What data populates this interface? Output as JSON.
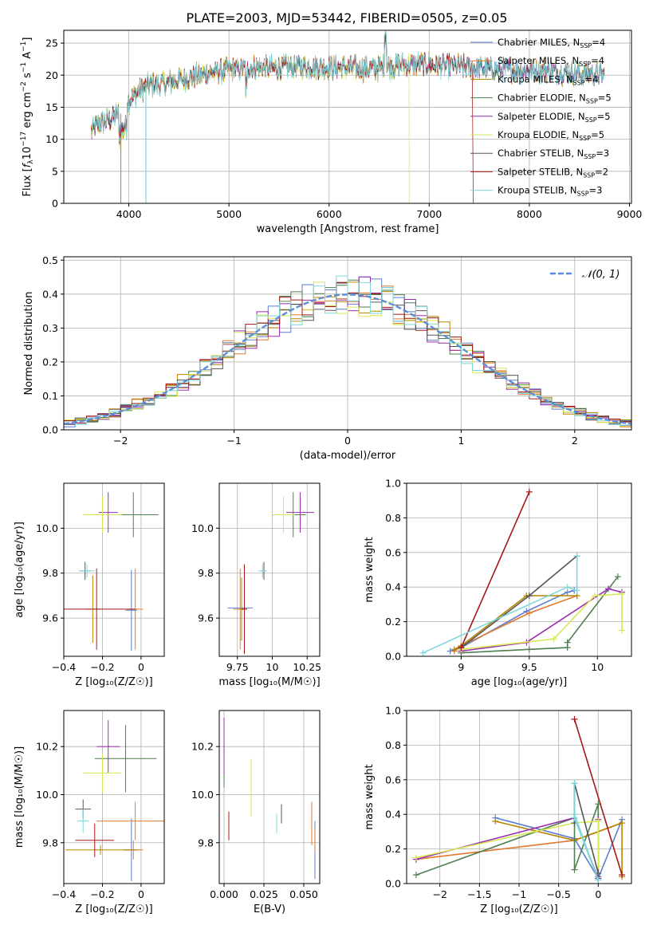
{
  "figure_title": "PLATE=2003, MJD=53442, FIBERID=0505, z=0.05",
  "colors": {
    "Chabrier MILES": "#5b7fd0",
    "Salpeter MILES": "#e07a2e",
    "Kroupa MILES": "#b88400",
    "Chabrier ELODIE": "#4f7f4f",
    "Salpeter ELODIE": "#9b2fae",
    "Kroupa ELODIE": "#d6e855",
    "Chabrier STELIB": "#555555",
    "Salpeter STELIB": "#a51818",
    "Kroupa STELIB": "#7dd7dc",
    "gauss": "#5b8fd8",
    "grid": "#b0b0b0"
  },
  "chart_data": [
    {
      "id": "spectrum",
      "type": "line",
      "xlabel": "wavelength [Angstrom, rest frame]",
      "xlim": [
        3350,
        9020
      ],
      "ylim": [
        0,
        27
      ],
      "xticks": [
        4000,
        5000,
        6000,
        7000,
        8000,
        9000
      ],
      "yticks": [
        0,
        5,
        10,
        15,
        20,
        25
      ],
      "continuum": {
        "x": [
          3620,
          3700,
          3800,
          3900,
          4000,
          4100,
          4200,
          4300,
          4500,
          4800,
          5000,
          5200,
          5500,
          5800,
          6100,
          6400,
          6700,
          7000,
          7400,
          7800,
          8200,
          8600,
          8750
        ],
        "y": [
          11,
          12.5,
          13,
          14,
          16,
          17.5,
          18.5,
          18.5,
          19.2,
          20.3,
          20.8,
          21.2,
          21.2,
          21.4,
          21.2,
          21,
          21.6,
          21.7,
          21.2,
          20.8,
          20.6,
          20.2,
          20
        ]
      },
      "legend": [
        {
          "name": "Chabrier MILES",
          "sub": "SSP",
          "n": "4"
        },
        {
          "name": "Salpeter MILES",
          "sub": "SSP",
          "n": "4"
        },
        {
          "name": "Kroupa MILES",
          "sub": "SSP",
          "n": "4"
        },
        {
          "name": "Chabrier ELODIE",
          "sub": "SSP",
          "n": "5"
        },
        {
          "name": "Salpeter ELODIE",
          "sub": "SSP",
          "n": "5"
        },
        {
          "name": "Kroupa ELODIE",
          "sub": "SSP",
          "n": "5"
        },
        {
          "name": "Chabrier STELIB",
          "sub": "SSP",
          "n": "3"
        },
        {
          "name": "Salpeter STELIB",
          "sub": "SSP",
          "n": "2"
        },
        {
          "name": "Kroupa STELIB",
          "sub": "SSP",
          "n": "3"
        }
      ]
    },
    {
      "id": "histogram",
      "type": "bar",
      "xlabel": "(data-model)/error",
      "ylabel": "Normed distribution",
      "xlim": [
        -2.5,
        2.5
      ],
      "ylim": [
        0,
        0.51
      ],
      "xticks": [
        -2,
        -1,
        0,
        1,
        2
      ],
      "yticks": [
        0.0,
        0.1,
        0.2,
        0.3,
        0.4,
        0.5
      ],
      "bin_width": 0.1,
      "legend_label": "𝒩(0, 1)"
    },
    {
      "id": "age-vs-Z",
      "type": "scatter",
      "xlabel": "Z [log₁₀(Z/Z☉)]",
      "ylabel": "age  [log₁₀(age/yr)]",
      "xlim": [
        -0.4,
        0.12
      ],
      "ylim": [
        9.43,
        10.2
      ],
      "xticks": [
        -0.4,
        -0.2,
        0.0
      ],
      "yticks": [
        9.6,
        9.8,
        10.0
      ],
      "points": [
        {
          "s": "Chabrier MILES",
          "x": -0.05,
          "y": 9.635,
          "ex": 0.03,
          "ey": 0.18
        },
        {
          "s": "Salpeter MILES",
          "x": -0.03,
          "y": 9.64,
          "ex": 0.04,
          "ey": 0.18
        },
        {
          "s": "Kroupa MILES",
          "x": -0.25,
          "y": 9.64,
          "ex": 0.04,
          "ey": 0.15
        },
        {
          "s": "Chabrier ELODIE",
          "x": -0.04,
          "y": 10.06,
          "ex": 0.13,
          "ey": 0.1
        },
        {
          "s": "Salpeter ELODIE",
          "x": -0.17,
          "y": 10.07,
          "ex": 0.05,
          "ey": 0.09
        },
        {
          "s": "Kroupa ELODIE",
          "x": -0.2,
          "y": 10.06,
          "ex": 0.1,
          "ey": 0.08
        },
        {
          "s": "Chabrier STELIB",
          "x": -0.29,
          "y": 9.81,
          "ex": 0.03,
          "ey": 0.04
        },
        {
          "s": "Salpeter STELIB",
          "x": -0.23,
          "y": 9.64,
          "ex": 0.2,
          "ey": 0.18
        },
        {
          "s": "Kroupa STELIB",
          "x": -0.28,
          "y": 9.81,
          "ex": 0.04,
          "ey": 0.03
        }
      ]
    },
    {
      "id": "age-vs-mass",
      "type": "scatter",
      "xlabel": "mass [log₁₀(M/M☉)]",
      "ylabel": "",
      "xlim": [
        9.62,
        10.34
      ],
      "ylim": [
        9.43,
        10.2
      ],
      "xticks": [
        9.75,
        10.0,
        10.25
      ],
      "yticks": [
        9.6,
        9.8,
        10.0
      ],
      "points": [
        {
          "s": "Chabrier MILES",
          "x": 9.77,
          "y": 9.645,
          "ex": 0.09,
          "ey": 0.0
        },
        {
          "s": "Salpeter MILES",
          "x": 9.77,
          "y": 9.64,
          "ex": 0.05,
          "ey": 0.18
        },
        {
          "s": "Kroupa MILES",
          "x": 9.78,
          "y": 9.64,
          "ex": 0.02,
          "ey": 0.14
        },
        {
          "s": "Chabrier ELODIE",
          "x": 10.15,
          "y": 10.06,
          "ex": 0.09,
          "ey": 0.1
        },
        {
          "s": "Salpeter ELODIE",
          "x": 10.2,
          "y": 10.07,
          "ex": 0.1,
          "ey": 0.09
        },
        {
          "s": "Kroupa ELODIE",
          "x": 10.08,
          "y": 10.06,
          "ex": 0.08,
          "ey": 0.08
        },
        {
          "s": "Chabrier STELIB",
          "x": 9.94,
          "y": 9.81,
          "ex": 0.02,
          "ey": 0.04
        },
        {
          "s": "Salpeter STELIB",
          "x": 9.8,
          "y": 9.64,
          "ex": 0.02,
          "ey": 0.2
        },
        {
          "s": "Kroupa STELIB",
          "x": 9.93,
          "y": 9.81,
          "ex": 0.03,
          "ey": 0.03
        }
      ]
    },
    {
      "id": "weight-vs-age",
      "type": "line",
      "xlabel": "age  [log₁₀(age/yr)]",
      "ylabel": "mass weight",
      "xlim": [
        8.6,
        10.25
      ],
      "ylim": [
        0,
        1.0
      ],
      "xticks": [
        9.0,
        9.5,
        10.0
      ],
      "yticks": [
        0.0,
        0.2,
        0.4,
        0.6,
        0.8,
        1.0
      ],
      "series": [
        {
          "s": "Chabrier MILES",
          "x": [
            8.92,
            9.0,
            9.48,
            9.78,
            9.83
          ],
          "y": [
            0.03,
            0.05,
            0.26,
            0.37,
            0.38
          ]
        },
        {
          "s": "Salpeter MILES",
          "x": [
            8.95,
            9.0,
            9.5,
            9.85
          ],
          "y": [
            0.03,
            0.06,
            0.25,
            0.35
          ]
        },
        {
          "s": "Kroupa MILES",
          "x": [
            8.95,
            9.0,
            9.48,
            9.85
          ],
          "y": [
            0.04,
            0.06,
            0.35,
            0.35
          ]
        },
        {
          "s": "Chabrier ELODIE",
          "x": [
            9.0,
            9.5,
            9.78,
            9.78,
            10.15
          ],
          "y": [
            0.02,
            0.04,
            0.05,
            0.08,
            0.46
          ]
        },
        {
          "s": "Salpeter ELODIE",
          "x": [
            9.0,
            9.48,
            10.08,
            10.18
          ],
          "y": [
            0.03,
            0.08,
            0.39,
            0.37
          ]
        },
        {
          "s": "Kroupa ELODIE",
          "x": [
            9.0,
            9.68,
            9.98,
            10.18,
            10.18
          ],
          "y": [
            0.04,
            0.1,
            0.35,
            0.36,
            0.15
          ]
        },
        {
          "s": "Chabrier STELIB",
          "x": [
            9.0,
            9.5,
            9.85
          ],
          "y": [
            0.05,
            0.35,
            0.58
          ]
        },
        {
          "s": "Salpeter STELIB",
          "x": [
            9.0,
            9.5
          ],
          "y": [
            0.05,
            0.95
          ]
        },
        {
          "s": "Kroupa STELIB",
          "x": [
            8.72,
            9.78,
            9.85,
            9.85
          ],
          "y": [
            0.02,
            0.4,
            0.38,
            0.58
          ]
        }
      ]
    },
    {
      "id": "mass-vs-Z",
      "type": "scatter",
      "xlabel": "Z [log₁₀(Z/Z☉)]",
      "ylabel": "mass [log₁₀(M/M☉)]",
      "xlim": [
        -0.4,
        0.12
      ],
      "ylim": [
        9.63,
        10.35
      ],
      "xticks": [
        -0.4,
        -0.2,
        0.0
      ],
      "yticks": [
        9.8,
        10.0,
        10.2
      ],
      "points": [
        {
          "s": "Chabrier MILES",
          "x": -0.05,
          "y": 9.77,
          "ex": 0.04,
          "ey": 0.13
        },
        {
          "s": "Salpeter MILES",
          "x": -0.04,
          "y": 9.77,
          "ex": 0.05,
          "ey": 0.04
        },
        {
          "s": "Kroupa MILES",
          "x": -0.21,
          "y": 9.77,
          "ex": 0.18,
          "ey": 0.02
        },
        {
          "s": "Chabrier ELODIE",
          "x": -0.08,
          "y": 10.15,
          "ex": 0.16,
          "ey": 0.14
        },
        {
          "s": "Salpeter ELODIE",
          "x": -0.17,
          "y": 10.2,
          "ex": 0.06,
          "ey": 0.11
        },
        {
          "s": "Kroupa ELODIE",
          "x": -0.2,
          "y": 10.09,
          "ex": 0.1,
          "ey": 0.08
        },
        {
          "s": "Chabrier STELIB",
          "x": -0.3,
          "y": 9.94,
          "ex": 0.04,
          "ey": 0.04
        },
        {
          "s": "Salpeter STELIB",
          "x": -0.24,
          "y": 9.81,
          "ex": 0.1,
          "ey": 0.07
        },
        {
          "s": "Kroupa STELIB",
          "x": -0.3,
          "y": 9.89,
          "ex": 0.03,
          "ey": 0.05
        },
        {
          "s": "Salpeter MILES",
          "x": -0.03,
          "y": 9.89,
          "ex": 0.2,
          "ey": 0.08
        }
      ]
    },
    {
      "id": "mass-vs-ebv",
      "type": "scatter",
      "xlabel": "E(B-V)",
      "ylabel": "",
      "xlim": [
        -0.003,
        0.06
      ],
      "ylim": [
        9.63,
        10.35
      ],
      "xticks": [
        0.0,
        0.025,
        0.05
      ],
      "ytick_values": [
        9.8,
        10.0,
        10.2
      ],
      "yticks": [
        "9.8",
        "10.0",
        "10.2"
      ],
      "xtick_labels": [
        "0.000",
        "0.025",
        "0.050"
      ],
      "points": [
        {
          "s": "Chabrier MILES",
          "x": 0.057,
          "y": 9.77,
          "ex": 0.0,
          "ey": 0.12
        },
        {
          "s": "Salpeter MILES",
          "x": 0.057,
          "y": 9.81,
          "ex": 0.0,
          "ey": 0.05
        },
        {
          "s": "Chabrier ELODIE",
          "x": 0.0,
          "y": 10.15,
          "ex": 0.0,
          "ey": 0.12
        },
        {
          "s": "Salpeter ELODIE",
          "x": 0.0,
          "y": 10.2,
          "ex": 0.0,
          "ey": 0.12
        },
        {
          "s": "Kroupa ELODIE",
          "x": 0.017,
          "y": 10.03,
          "ex": 0.0,
          "ey": 0.12
        },
        {
          "s": "Chabrier STELIB",
          "x": 0.036,
          "y": 9.92,
          "ex": 0.0,
          "ey": 0.04
        },
        {
          "s": "Salpeter STELIB",
          "x": 0.003,
          "y": 9.87,
          "ex": 0.0,
          "ey": 0.06
        },
        {
          "s": "Kroupa STELIB",
          "x": 0.033,
          "y": 9.88,
          "ex": 0.0,
          "ey": 0.04
        },
        {
          "s": "Salpeter MILES",
          "x": 0.055,
          "y": 9.88,
          "ex": 0.0,
          "ey": 0.09
        }
      ]
    },
    {
      "id": "weight-vs-Z",
      "type": "line",
      "xlabel": "Z [log₁₀(Z/Z☉)]",
      "ylabel": "mass weight",
      "xlim": [
        -2.42,
        0.42
      ],
      "ylim": [
        0,
        1.0
      ],
      "xticks": [
        -2.0,
        -1.5,
        -1.0,
        -0.5,
        0.0
      ],
      "yticks": [
        0.0,
        0.2,
        0.4,
        0.6,
        0.8,
        1.0
      ],
      "series": [
        {
          "s": "Chabrier MILES",
          "x": [
            -1.3,
            -0.3,
            0.0,
            0.3
          ],
          "y": [
            0.38,
            0.26,
            0.03,
            0.37
          ]
        },
        {
          "s": "Salpeter MILES",
          "x": [
            -2.3,
            -0.3,
            0.3
          ],
          "y": [
            0.14,
            0.25,
            0.35
          ]
        },
        {
          "s": "Kroupa MILES",
          "x": [
            -1.3,
            -0.3,
            0.3,
            0.3
          ],
          "y": [
            0.36,
            0.25,
            0.35,
            0.04
          ]
        },
        {
          "s": "Chabrier ELODIE",
          "x": [
            -2.3,
            -0.3,
            -0.3,
            0.0,
            0.0
          ],
          "y": [
            0.05,
            0.38,
            0.08,
            0.46,
            0.04
          ]
        },
        {
          "s": "Salpeter ELODIE",
          "x": [
            -2.3,
            -0.3,
            0.0,
            0.0
          ],
          "y": [
            0.14,
            0.38,
            0.03,
            0.37
          ]
        },
        {
          "s": "Kroupa ELODIE",
          "x": [
            -2.3,
            -0.3,
            0.0,
            0.0
          ],
          "y": [
            0.15,
            0.35,
            0.36,
            0.1
          ]
        },
        {
          "s": "Chabrier STELIB",
          "x": [
            -0.3,
            -0.3,
            0.0
          ],
          "y": [
            0.35,
            0.58,
            0.06
          ]
        },
        {
          "s": "Salpeter STELIB",
          "x": [
            -0.3,
            0.3
          ],
          "y": [
            0.95,
            0.05
          ]
        },
        {
          "s": "Kroupa STELIB",
          "x": [
            -0.3,
            -0.3,
            0.0,
            -0.3
          ],
          "y": [
            0.58,
            0.38,
            0.02,
            0.4
          ]
        }
      ]
    }
  ]
}
